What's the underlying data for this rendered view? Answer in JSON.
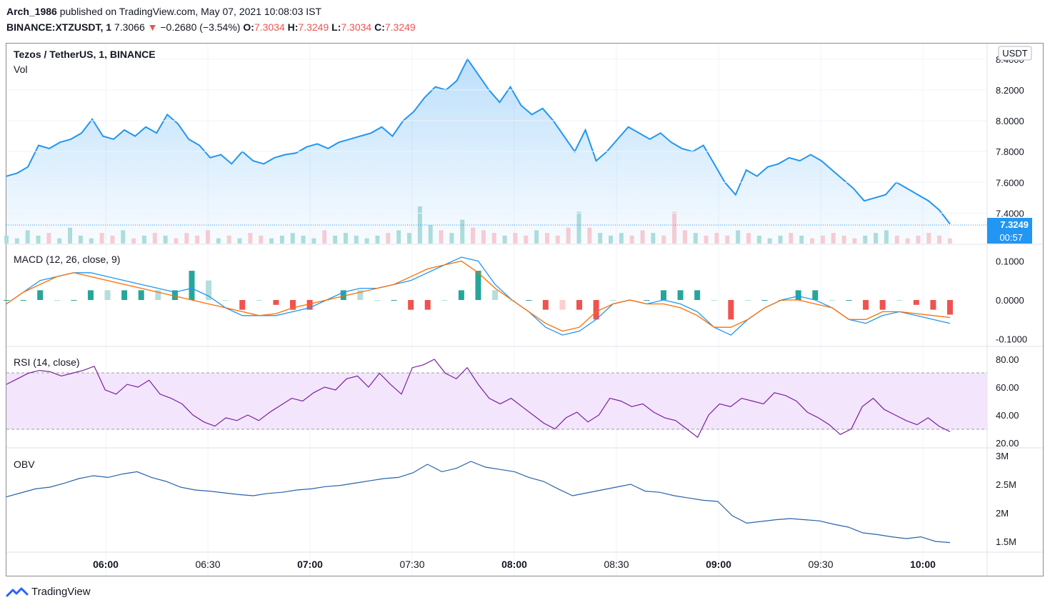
{
  "header": {
    "publisher": "Arch_1986",
    "published_text": "published on TradingView.com, May 07, 2021 10:08:03 IST",
    "symbol": "BINANCE:XTZUSDT, 1",
    "last": "7.3066",
    "arrow": "▼",
    "change": "−0.2680 (−3.54%)",
    "o_label": "O:",
    "o_value": "7.3034",
    "h_label": "H:",
    "h_value": "7.3249",
    "l_label": "L:",
    "l_value": "7.3034",
    "c_label": "C:",
    "c_value": "7.3249"
  },
  "panes": {
    "main_title": "Tezos / TetherUS, 1, BINANCE",
    "vol_label": "Vol",
    "macd_label": "MACD (12, 26, close, 9)",
    "rsi_label": "RSI (14, close)",
    "obv_label": "OBV"
  },
  "price_axis": {
    "currency_badge": "USDT",
    "last_price_badge": "7.3249",
    "countdown_badge": "00:57"
  },
  "footer": {
    "brand": "TradingView"
  },
  "colors": {
    "price_line": "#2196f3",
    "macd_line": "#2196f3",
    "signal_line": "#ff6d00",
    "hist_pos": "#26a69a",
    "hist_pos_light": "#b2dfdb",
    "hist_neg": "#ef5350",
    "hist_neg_light": "#ffcdd2",
    "rsi_line": "#7b1fa2",
    "rsi_band": "#f3e5fc",
    "obv_line": "#2962a8",
    "vol_up": "#b2dfdb",
    "vol_down": "#ffcdd2"
  },
  "chart_data": [
    {
      "type": "area",
      "title": "Tezos / TetherUS, 1, BINANCE",
      "series": [
        {
          "name": "XTZUSDT",
          "values": [
            7.64,
            7.66,
            7.7,
            7.84,
            7.82,
            7.86,
            7.88,
            7.92,
            8.01,
            7.9,
            7.88,
            7.94,
            7.9,
            7.96,
            7.92,
            8.04,
            7.98,
            7.88,
            7.84,
            7.76,
            7.78,
            7.72,
            7.8,
            7.74,
            7.72,
            7.76,
            7.78,
            7.79,
            7.83,
            7.85,
            7.82,
            7.86,
            7.88,
            7.9,
            7.92,
            7.96,
            7.9,
            8.0,
            8.06,
            8.15,
            8.22,
            8.2,
            8.26,
            8.4,
            8.3,
            8.2,
            8.12,
            8.22,
            8.1,
            8.04,
            8.08,
            8.0,
            7.9,
            7.8,
            7.94,
            7.74,
            7.8,
            7.88,
            7.96,
            7.92,
            7.88,
            7.92,
            7.86,
            7.82,
            7.8,
            7.84,
            7.72,
            7.6,
            7.52,
            7.68,
            7.64,
            7.7,
            7.72,
            7.76,
            7.74,
            7.78,
            7.74,
            7.68,
            7.62,
            7.56,
            7.48,
            7.5,
            7.52,
            7.6,
            7.56,
            7.52,
            7.48,
            7.42,
            7.33
          ]
        }
      ],
      "ylabel": "USDT",
      "ylim": [
        7.3,
        8.45
      ],
      "yticks": [
        "8.4000",
        "8.2000",
        "8.0000",
        "7.8000",
        "7.6000",
        "7.4000"
      ],
      "xticks": [
        "06:00",
        "06:30",
        "07:00",
        "07:30",
        "08:00",
        "08:30",
        "09:00",
        "09:30",
        "10:00"
      ],
      "last_value": 7.3249
    },
    {
      "type": "bar",
      "title": "Vol",
      "note_on_values": "relative heights estimated; no volume axis printed",
      "values": [
        3,
        2,
        5,
        3,
        4,
        2,
        6,
        3,
        2,
        4,
        3,
        5,
        2,
        3,
        4,
        3,
        2,
        4,
        3,
        5,
        2,
        3,
        2,
        4,
        3,
        2,
        3,
        4,
        3,
        2,
        5,
        3,
        4,
        3,
        2,
        3,
        4,
        5,
        4,
        14,
        7,
        5,
        4,
        9,
        6,
        5,
        4,
        3,
        4,
        3,
        5,
        4,
        3,
        6,
        12,
        6,
        4,
        3,
        4,
        3,
        5,
        4,
        3,
        12,
        5,
        4,
        3,
        4,
        3,
        5,
        4,
        3,
        2,
        3,
        4,
        3,
        2,
        3,
        4,
        3,
        2,
        3,
        4,
        5,
        3,
        2,
        3,
        4,
        3,
        2
      ]
    },
    {
      "type": "line",
      "title": "MACD (12, 26, close, 9)",
      "ylim": [
        -0.1,
        0.1
      ],
      "yticks": [
        "0.1000",
        "0.0000",
        "-0.1000"
      ],
      "series": [
        {
          "name": "MACD",
          "values": [
            -0.01,
            0.02,
            0.05,
            0.06,
            0.07,
            0.07,
            0.06,
            0.05,
            0.04,
            0.03,
            0.02,
            0.03,
            0.01,
            -0.02,
            -0.04,
            -0.04,
            -0.04,
            -0.03,
            -0.02,
            0.0,
            0.02,
            0.03,
            0.03,
            0.04,
            0.05,
            0.07,
            0.09,
            0.11,
            0.1,
            0.04,
            0.0,
            -0.03,
            -0.07,
            -0.09,
            -0.08,
            -0.05,
            -0.01,
            0.0,
            -0.01,
            0.0,
            -0.01,
            -0.03,
            -0.07,
            -0.09,
            -0.05,
            -0.02,
            0.0,
            0.01,
            0.0,
            -0.02,
            -0.05,
            -0.06,
            -0.04,
            -0.03,
            -0.04,
            -0.05,
            -0.06
          ]
        },
        {
          "name": "Signal",
          "values": [
            -0.01,
            0.02,
            0.04,
            0.06,
            0.07,
            0.06,
            0.05,
            0.04,
            0.03,
            0.02,
            0.01,
            0.0,
            -0.01,
            -0.02,
            -0.03,
            -0.04,
            -0.035,
            -0.02,
            -0.01,
            0.0,
            0.01,
            0.02,
            0.03,
            0.04,
            0.06,
            0.08,
            0.09,
            0.1,
            0.07,
            0.03,
            0.0,
            -0.03,
            -0.06,
            -0.08,
            -0.07,
            -0.03,
            -0.01,
            0.0,
            -0.01,
            -0.01,
            -0.02,
            -0.04,
            -0.07,
            -0.07,
            -0.05,
            -0.02,
            0.0,
            0.0,
            -0.01,
            -0.02,
            -0.05,
            -0.05,
            -0.03,
            -0.03,
            -0.035,
            -0.04,
            -0.045
          ]
        }
      ]
    },
    {
      "type": "line",
      "title": "RSI (14, close)",
      "ylim": [
        20,
        80
      ],
      "yticks": [
        "80.00",
        "60.00",
        "40.00",
        "20.00"
      ],
      "bands": [
        30,
        70
      ],
      "series": [
        {
          "name": "RSI",
          "values": [
            62,
            66,
            70,
            72,
            71,
            68,
            70,
            72,
            75,
            58,
            55,
            62,
            60,
            65,
            55,
            52,
            48,
            40,
            35,
            32,
            38,
            36,
            40,
            36,
            42,
            47,
            52,
            50,
            56,
            60,
            58,
            66,
            68,
            60,
            70,
            62,
            55,
            74,
            76,
            80,
            70,
            66,
            74,
            62,
            52,
            48,
            52,
            46,
            40,
            34,
            30,
            38,
            42,
            35,
            40,
            52,
            50,
            46,
            48,
            42,
            38,
            36,
            30,
            24,
            40,
            48,
            46,
            52,
            50,
            48,
            56,
            54,
            50,
            42,
            38,
            33,
            26,
            30,
            46,
            52,
            44,
            40,
            36,
            33,
            38,
            32,
            28
          ]
        }
      ]
    },
    {
      "type": "line",
      "title": "OBV",
      "yticks": [
        "3M",
        "2.5M",
        "2M",
        "1.5M"
      ],
      "ylim": [
        1.3,
        3.0
      ],
      "series": [
        {
          "name": "OBV",
          "values": [
            2.28,
            2.35,
            2.42,
            2.45,
            2.52,
            2.6,
            2.65,
            2.62,
            2.68,
            2.72,
            2.62,
            2.55,
            2.45,
            2.4,
            2.38,
            2.35,
            2.32,
            2.3,
            2.34,
            2.36,
            2.4,
            2.42,
            2.46,
            2.48,
            2.52,
            2.56,
            2.6,
            2.62,
            2.7,
            2.85,
            2.72,
            2.78,
            2.9,
            2.8,
            2.76,
            2.72,
            2.62,
            2.55,
            2.42,
            2.3,
            2.35,
            2.4,
            2.45,
            2.5,
            2.38,
            2.36,
            2.3,
            2.26,
            2.22,
            2.2,
            1.95,
            1.82,
            1.85,
            1.88,
            1.9,
            1.88,
            1.86,
            1.8,
            1.75,
            1.65,
            1.62,
            1.58,
            1.55,
            1.58,
            1.5,
            1.48
          ]
        }
      ]
    }
  ]
}
